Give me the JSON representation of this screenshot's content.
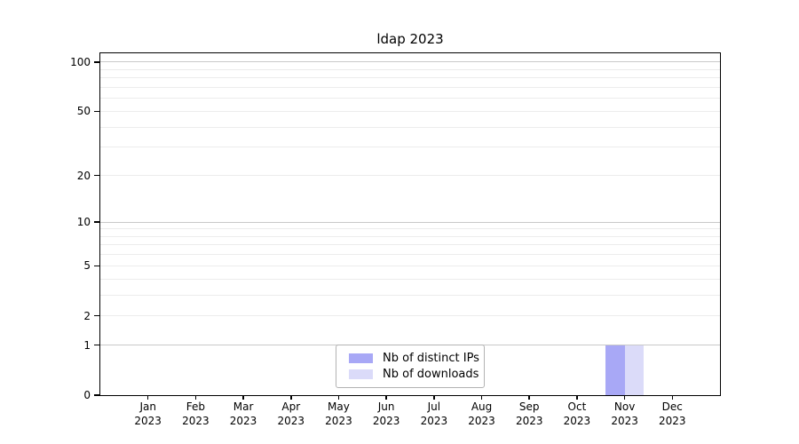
{
  "chart_data": {
    "type": "bar",
    "title": "ldap 2023",
    "categories": [
      "Jan 2023",
      "Feb 2023",
      "Mar 2023",
      "Apr 2023",
      "May 2023",
      "Jun 2023",
      "Jul 2023",
      "Aug 2023",
      "Sep 2023",
      "Oct 2023",
      "Nov 2023",
      "Dec 2023"
    ],
    "series": [
      {
        "name": "Nb of distinct IPs",
        "color": "#a8a8f6",
        "values": [
          0,
          0,
          0,
          0,
          0,
          0,
          0,
          0,
          0,
          0,
          1,
          0
        ]
      },
      {
        "name": "Nb of downloads",
        "color": "#dbdbf9",
        "values": [
          0,
          0,
          0,
          0,
          0,
          0,
          0,
          0,
          0,
          0,
          1,
          0
        ]
      }
    ],
    "xlabel": "",
    "ylabel": "",
    "yscale": "log1p",
    "ylim": [
      0,
      113
    ],
    "ytick_values": [
      0,
      1,
      2,
      5,
      10,
      20,
      50,
      100
    ],
    "ytick_labels": [
      "0",
      "1",
      "2",
      "5",
      "10",
      "20",
      "50",
      "100"
    ],
    "major_grid_values": [
      1,
      10,
      100
    ],
    "minor_grid_values": [
      2,
      3,
      4,
      5,
      6,
      7,
      8,
      9,
      20,
      30,
      40,
      50,
      60,
      70,
      80,
      90
    ],
    "grid": "horizontal",
    "legend_position": "lower center"
  },
  "legend": {
    "items": [
      {
        "label": "Nb of distinct IPs",
        "color": "#a8a8f6"
      },
      {
        "label": "Nb of downloads",
        "color": "#dbdbf9"
      }
    ]
  },
  "colors": {
    "major_grid": "#c9c9c9",
    "minor_grid": "#ececec",
    "axis": "#000000",
    "background": "#ffffff",
    "legend_border": "#b3b3b3"
  }
}
